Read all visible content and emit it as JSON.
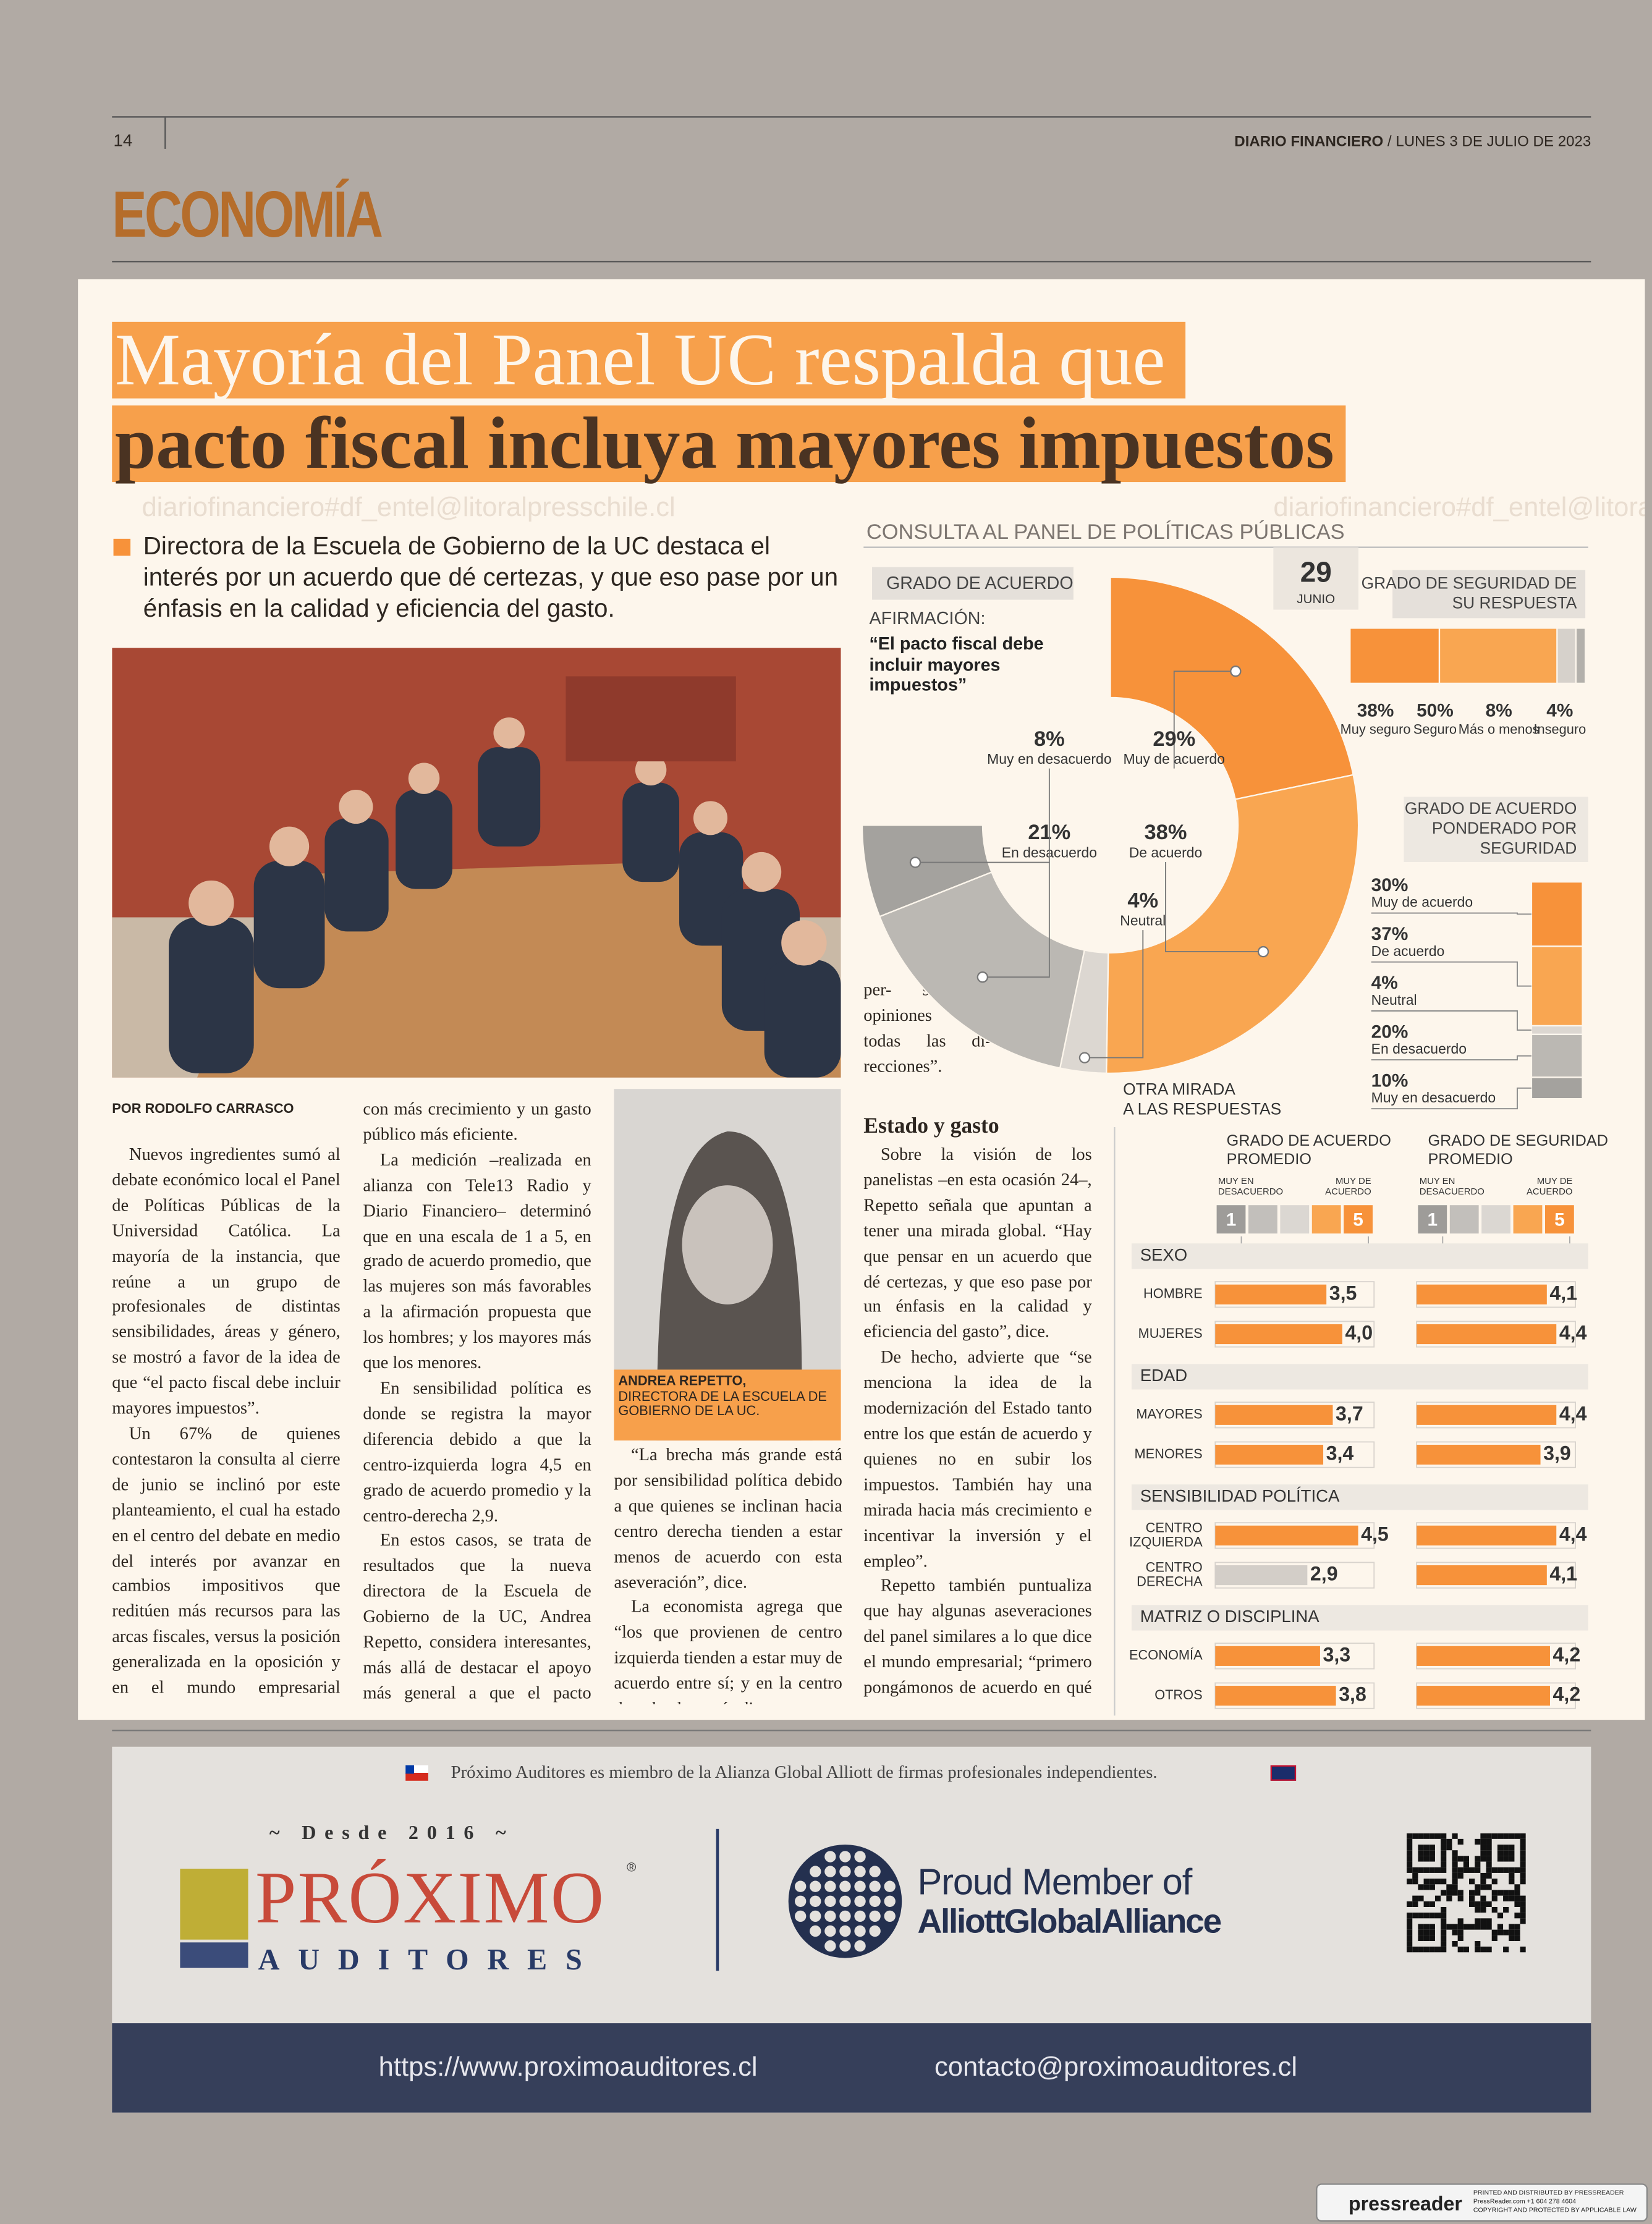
{
  "header": {
    "page": "14",
    "paper": "DIARIO FINANCIERO",
    "date": "/ LUNES 3 DE JULIO DE 2023",
    "section": "ECONOMÍA"
  },
  "watermark": "diariofinanciero#df_entel@litoralpresschile.cl",
  "headline": [
    "Mayoría del Panel UC respalda que",
    "pacto fiscal incluya mayores impuestos"
  ],
  "deck": "Directora de la Escuela de Gobierno de la UC destaca el interés por un acuerdo que dé certezas, y que eso pase por un énfasis en la calidad y eficiencia del gasto.",
  "byline": "POR RODOLFO CARRASCO",
  "columns": [
    [
      "Nuevos ingredientes sumó al debate económico local el Panel de Políticas Públicas de la Universidad Católica. La mayoría de la instancia, que reúne a un grupo de profesionales de distintas sensibilidades, áreas y género, se mostró a favor de la idea de que “el pacto fiscal debe incluir mayores impuestos”.",
      "Un 67% de quienes contestaron la consulta al cierre de junio se inclinó por este planteamiento, el cual ha estado en el centro del debate en medio del interés por avanzar en cambios impositivos que reditúen más recursos para las arcas fiscales, versus la posición generalizada en la oposición y en el mundo empresarial respecto a que dicho objetivo se puede lograr"
    ],
    [
      "con más crecimiento y un gasto público más eficiente.",
      "La medición –realizada en alianza con Tele13 Radio y Diario Financiero– determinó que en una escala de 1 a 5, en grado de acuerdo promedio, que las mujeres son más favorables a la afirmación propuesta que los hombres; y los mayores más que los menores.",
      "En sensibilidad política es donde se registra la mayor diferencia debido a que la centro-izquierda logra 4,5 en grado de acuerdo promedio y la centro-derecha 2,9.",
      "En estos casos, se trata de resultados que la nueva directora de la Escuela de Gobierno de la UC, Andrea Repetto, considera interesantes, más allá de destacar el apoyo más general a que el pacto incluya más impuestos."
    ],
    [
      "“La brecha más grande está por sensibilidad política debido a que quienes se inclinan hacia centro derecha tienden a estar menos de acuerdo con esta aseveración”, dice.",
      "La economista agrega que “los que provienen de centro izquierda tienden a estar muy de acuerdo entre sí; y en la centro derecha, hay más dis-"
    ],
    [
      "per- sión y opiniones en todas las di- recciones”."
    ],
    [
      "Sobre la visión de los panelistas –en esta ocasión 24–, Repetto señala que apuntan a tener una mirada global. “Hay que pensar en un acuerdo que dé certezas, y que eso pase por un énfasis en la calidad y eficiencia del gasto”, dice.",
      "De hecho, advierte que “se menciona la idea de la modernización del Estado tanto entre los que están de acuerdo y quienes no en subir los impuestos. También hay una mirada hacia más crecimiento e incentivar la inversión y el empleo”.",
      "Repetto también puntualiza que hay algunas aseveraciones del panel similares a lo que dice el mundo empresarial; “primero pongámonos de acuerdo en qué necesitamos financiar y luego veamos"
    ]
  ],
  "subhead": "Estado y gasto",
  "caption": {
    "name": "ANDREA REPETTO,",
    "role": "DIRECTORA DE LA ESCUELA DE GOBIERNO DE LA UC."
  },
  "infographic": {
    "title": "CONSULTA AL PANEL DE POLÍTICAS PÚBLICAS",
    "day": "29",
    "month": "JUNIO",
    "donut": {
      "type": "pie",
      "title": "GRADO DE ACUERDO",
      "statement_label": "AFIRMACIÓN:",
      "statement": "“El pacto fiscal debe incluir mayores impuestos”",
      "categories": [
        "Muy de acuerdo",
        "De acuerdo",
        "Neutral",
        "En desacuerdo",
        "Muy en desacuerdo"
      ],
      "values": [
        29,
        38,
        4,
        21,
        8
      ],
      "value_labels": [
        "29%",
        "38%",
        "4%",
        "21%",
        "8%"
      ],
      "colors": [
        "#f7923a",
        "#f9a651",
        "#dcd7d1",
        "#bbb8b3",
        "#a4a29e"
      ]
    },
    "security": {
      "type": "bar",
      "title": "GRADO DE SEGURIDAD DE SU RESPUESTA",
      "categories": [
        "Muy seguro",
        "Seguro",
        "Más o menos",
        "Inseguro"
      ],
      "values": [
        38,
        50,
        8,
        4
      ],
      "value_labels": [
        "38%",
        "50%",
        "8%",
        "4%"
      ],
      "colors": [
        "#f7923a",
        "#f9a651",
        "#d6d1cb",
        "#b3b0ab"
      ]
    },
    "weighted": {
      "type": "bar",
      "title": "GRADO DE ACUERDO PONDERADO POR SEGURIDAD",
      "categories": [
        "Muy de acuerdo",
        "De acuerdo",
        "Neutral",
        "En desacuerdo",
        "Muy en desacuerdo"
      ],
      "values": [
        30,
        37,
        4,
        20,
        10
      ],
      "value_labels": [
        "30%",
        "37%",
        "4%",
        "20%",
        "10%"
      ],
      "colors": [
        "#f7923a",
        "#f9a651",
        "#dcd7d1",
        "#bbb8b3",
        "#a4a29e"
      ]
    },
    "averages": {
      "type": "bar",
      "title": "OTRA MIRADA A LAS RESPUESTAS",
      "xlim": [
        0,
        5
      ],
      "panels": [
        {
          "title": "GRADO DE ACUERDO PROMEDIO",
          "low_label": "MUY EN DESACUERDO",
          "high_label": "MUY DE ACUERDO",
          "ticks": [
            1,
            5
          ]
        },
        {
          "title": "GRADO DE SEGURIDAD PROMEDIO",
          "low_label": "MUY EN DESACUERDO",
          "high_label": "MUY DE ACUERDO",
          "ticks": [
            1,
            5
          ]
        }
      ],
      "groups": [
        {
          "name": "SEXO",
          "rows": [
            {
              "label": "HOMBRE",
              "values": [
                3.5,
                4.1
              ],
              "value_labels": [
                "3,5",
                "4,1"
              ],
              "colors": [
                "#f7923a",
                "#f7923a"
              ]
            },
            {
              "label": "MUJERES",
              "values": [
                4.0,
                4.4
              ],
              "value_labels": [
                "4,0",
                "4,4"
              ],
              "colors": [
                "#f7923a",
                "#f7923a"
              ]
            }
          ]
        },
        {
          "name": "EDAD",
          "rows": [
            {
              "label": "MAYORES",
              "values": [
                3.7,
                4.4
              ],
              "value_labels": [
                "3,7",
                "4,4"
              ],
              "colors": [
                "#f7923a",
                "#f7923a"
              ]
            },
            {
              "label": "MENORES",
              "values": [
                3.4,
                3.9
              ],
              "value_labels": [
                "3,4",
                "3,9"
              ],
              "colors": [
                "#f7923a",
                "#f7923a"
              ]
            }
          ]
        },
        {
          "name": "SENSIBILIDAD POLÍTICA",
          "rows": [
            {
              "label": "CENTRO IZQUIERDA",
              "values": [
                4.5,
                4.4
              ],
              "value_labels": [
                "4,5",
                "4,4"
              ],
              "colors": [
                "#f7923a",
                "#f7923a"
              ]
            },
            {
              "label": "CENTRO DERECHA",
              "values": [
                2.9,
                4.1
              ],
              "value_labels": [
                "2,9",
                "4,1"
              ],
              "colors": [
                "#d3cec8",
                "#f7923a"
              ]
            }
          ]
        },
        {
          "name": "MATRIZ O DISCIPLINA",
          "rows": [
            {
              "label": "ECONOMÍA",
              "values": [
                3.3,
                4.2
              ],
              "value_labels": [
                "3,3",
                "4,2"
              ],
              "colors": [
                "#f7923a",
                "#f7923a"
              ]
            },
            {
              "label": "OTROS",
              "values": [
                3.8,
                4.2
              ],
              "value_labels": [
                "3,8",
                "4,2"
              ],
              "colors": [
                "#f7923a",
                "#f7923a"
              ]
            }
          ]
        }
      ]
    }
  },
  "ad": {
    "member_line": "Próximo Auditores es miembro de la Alianza Global Alliott de firmas profesionales independientes.",
    "since": "~ Desde 2016 ~",
    "brand": "PRÓXIMO",
    "brand_sub": "AUDITORES",
    "registered": "®",
    "proud": "Proud Member of",
    "alliance": "AlliottGlobalAlliance",
    "web": "https://www.proximoauditores.cl",
    "email": "contacto@proximoauditores.cl"
  },
  "footer": {
    "brand": "pressreader",
    "lines": [
      "PRINTED AND DISTRIBUTED BY PRESSREADER",
      "PressReader.com +1 604 278 4604",
      "COPYRIGHT AND PROTECTED BY APPLICABLE LAW"
    ]
  }
}
